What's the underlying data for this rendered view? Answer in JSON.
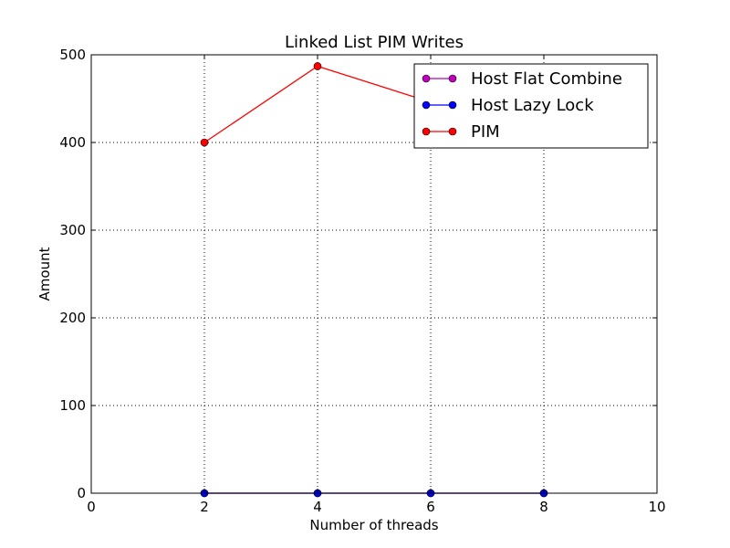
{
  "chart_data": {
    "type": "line",
    "title": "Linked List PIM Writes",
    "xlabel": "Number of threads",
    "ylabel": "Amount",
    "xlim": [
      0,
      10
    ],
    "ylim": [
      0,
      500
    ],
    "xticks": [
      0,
      2,
      4,
      6,
      8,
      10
    ],
    "yticks": [
      0,
      100,
      200,
      300,
      400,
      500
    ],
    "grid": true,
    "legend_position": "top-right",
    "series": [
      {
        "name": "Host Flat Combine",
        "color": "#bf00bf",
        "x": [
          2,
          4,
          6,
          8
        ],
        "y": [
          0,
          0,
          0,
          0
        ]
      },
      {
        "name": "Host Lazy Lock",
        "color": "#0000ff",
        "x": [
          2,
          4,
          6,
          8
        ],
        "y": [
          0,
          0,
          0,
          0
        ]
      },
      {
        "name": "PIM",
        "color": "#ff0000",
        "x": [
          2,
          4,
          6,
          8
        ],
        "y": [
          400,
          487,
          446,
          440
        ]
      }
    ]
  }
}
